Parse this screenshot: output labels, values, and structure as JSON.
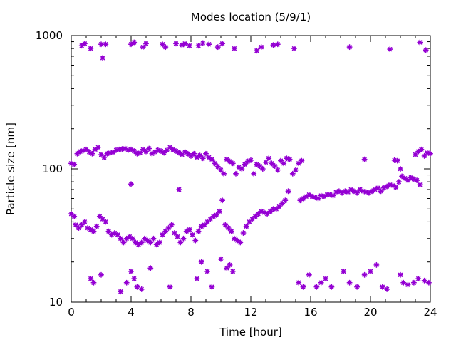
{
  "chart_data": {
    "type": "scatter",
    "title": "Modes location (5/9/1)",
    "xlabel": "Time [hour]",
    "ylabel": "Particle size [nm]",
    "xlim": [
      0,
      24
    ],
    "ylim": [
      10,
      1000
    ],
    "yscale": "log",
    "xticks": [
      0,
      4,
      8,
      12,
      16,
      20,
      24
    ],
    "xtick_labels": [
      "0",
      "4",
      "8",
      "12",
      "16",
      "20",
      "24"
    ],
    "yticks": [
      10,
      100,
      1000
    ],
    "ytick_labels": [
      "10",
      "100",
      "1000"
    ],
    "grid": false,
    "legend": "none",
    "marker": "asterisk",
    "color": "#9400d3",
    "series": [
      {
        "points": [
          [
            0.7,
            840
          ],
          [
            0.9,
            870
          ],
          [
            1.3,
            800
          ],
          [
            2.0,
            860
          ],
          [
            2.1,
            680
          ],
          [
            2.3,
            860
          ],
          [
            4.0,
            860
          ],
          [
            4.2,
            890
          ],
          [
            4.8,
            820
          ],
          [
            5.0,
            870
          ],
          [
            6.1,
            860
          ],
          [
            6.3,
            820
          ],
          [
            7.0,
            870
          ],
          [
            7.4,
            850
          ],
          [
            7.6,
            870
          ],
          [
            7.9,
            840
          ],
          [
            8.5,
            840
          ],
          [
            8.8,
            880
          ],
          [
            9.2,
            860
          ],
          [
            9.8,
            820
          ],
          [
            10.1,
            870
          ],
          [
            10.9,
            800
          ],
          [
            12.4,
            770
          ],
          [
            12.7,
            820
          ],
          [
            13.5,
            850
          ],
          [
            13.8,
            860
          ],
          [
            14.9,
            800
          ],
          [
            18.6,
            820
          ],
          [
            21.3,
            790
          ],
          [
            23.3,
            890
          ],
          [
            23.7,
            780
          ]
        ]
      },
      {
        "points": [
          [
            0.0,
            110
          ],
          [
            0.2,
            108
          ],
          [
            0.4,
            130
          ],
          [
            0.6,
            135
          ],
          [
            0.8,
            137
          ],
          [
            1.0,
            140
          ],
          [
            1.2,
            134
          ],
          [
            1.4,
            130
          ],
          [
            1.6,
            140
          ],
          [
            1.8,
            145
          ],
          [
            2.0,
            128
          ],
          [
            2.2,
            122
          ],
          [
            2.4,
            130
          ],
          [
            2.6,
            132
          ],
          [
            2.8,
            133
          ],
          [
            3.0,
            138
          ],
          [
            3.2,
            140
          ],
          [
            3.4,
            141
          ],
          [
            3.6,
            142
          ],
          [
            3.8,
            138
          ],
          [
            4.0,
            140
          ],
          [
            4.2,
            136
          ],
          [
            4.4,
            130
          ],
          [
            4.6,
            132
          ],
          [
            4.8,
            140
          ],
          [
            5.0,
            135
          ],
          [
            5.2,
            142
          ],
          [
            5.4,
            130
          ],
          [
            5.6,
            134
          ],
          [
            5.8,
            138
          ],
          [
            6.0,
            136
          ],
          [
            6.2,
            132
          ],
          [
            6.4,
            138
          ],
          [
            6.6,
            145
          ],
          [
            6.8,
            140
          ],
          [
            7.0,
            136
          ],
          [
            7.2,
            132
          ],
          [
            7.4,
            128
          ],
          [
            7.6,
            134
          ],
          [
            7.8,
            130
          ],
          [
            8.0,
            125
          ],
          [
            8.2,
            130
          ],
          [
            8.4,
            122
          ],
          [
            8.6,
            126
          ],
          [
            8.8,
            120
          ],
          [
            9.0,
            130
          ],
          [
            9.2,
            122
          ],
          [
            9.4,
            118
          ],
          [
            9.6,
            110
          ],
          [
            9.8,
            104
          ],
          [
            10.0,
            98
          ],
          [
            10.2,
            92
          ],
          [
            10.4,
            118
          ],
          [
            10.6,
            114
          ],
          [
            10.8,
            110
          ],
          [
            11.0,
            92
          ],
          [
            11.2,
            103
          ],
          [
            11.4,
            100
          ],
          [
            11.6,
            108
          ],
          [
            11.8,
            114
          ],
          [
            12.0,
            116
          ],
          [
            12.2,
            92
          ],
          [
            12.4,
            108
          ],
          [
            12.6,
            105
          ],
          [
            12.8,
            100
          ],
          [
            13.0,
            112
          ],
          [
            13.2,
            120
          ],
          [
            13.4,
            110
          ],
          [
            13.6,
            105
          ],
          [
            13.8,
            98
          ],
          [
            14.0,
            115
          ],
          [
            14.2,
            110
          ],
          [
            14.4,
            120
          ],
          [
            14.6,
            118
          ],
          [
            14.8,
            92
          ],
          [
            15.0,
            98
          ],
          [
            15.2,
            110
          ],
          [
            15.4,
            115
          ],
          [
            19.6,
            118
          ],
          [
            21.6,
            116
          ],
          [
            21.8,
            115
          ],
          [
            22.0,
            100
          ],
          [
            23.0,
            128
          ],
          [
            23.2,
            135
          ],
          [
            23.4,
            140
          ],
          [
            23.6,
            125
          ],
          [
            23.8,
            132
          ],
          [
            24.0,
            130
          ],
          [
            4.0,
            77
          ]
        ]
      },
      {
        "points": [
          [
            0.0,
            46
          ],
          [
            0.2,
            44
          ],
          [
            0.3,
            38
          ],
          [
            0.5,
            36
          ],
          [
            0.7,
            38
          ],
          [
            0.9,
            40
          ],
          [
            1.1,
            36
          ],
          [
            1.3,
            35
          ],
          [
            1.5,
            34
          ],
          [
            1.7,
            37
          ],
          [
            1.9,
            44
          ],
          [
            2.1,
            42
          ],
          [
            2.3,
            40
          ],
          [
            2.5,
            34
          ],
          [
            2.7,
            32
          ],
          [
            2.9,
            33
          ],
          [
            3.1,
            32
          ],
          [
            3.3,
            30
          ],
          [
            3.5,
            28
          ],
          [
            3.7,
            30
          ],
          [
            3.9,
            31
          ],
          [
            4.1,
            30
          ],
          [
            4.3,
            28
          ],
          [
            4.5,
            27
          ],
          [
            4.7,
            28
          ],
          [
            4.9,
            30
          ],
          [
            5.1,
            29
          ],
          [
            5.3,
            28
          ],
          [
            5.5,
            30
          ],
          [
            5.7,
            27
          ],
          [
            5.9,
            28
          ],
          [
            6.1,
            32
          ],
          [
            6.3,
            34
          ],
          [
            6.5,
            36
          ],
          [
            6.7,
            38
          ],
          [
            6.9,
            33
          ],
          [
            7.1,
            31
          ],
          [
            7.3,
            28
          ],
          [
            7.5,
            30
          ],
          [
            7.7,
            34
          ],
          [
            7.9,
            35
          ],
          [
            8.1,
            32
          ],
          [
            8.3,
            29
          ],
          [
            8.5,
            34
          ],
          [
            8.7,
            37
          ],
          [
            8.9,
            38
          ],
          [
            9.1,
            40
          ],
          [
            9.3,
            42
          ],
          [
            9.5,
            44
          ],
          [
            9.7,
            45
          ],
          [
            9.9,
            48
          ],
          [
            10.1,
            58
          ],
          [
            10.3,
            38
          ],
          [
            10.5,
            36
          ],
          [
            10.7,
            34
          ],
          [
            10.9,
            30
          ],
          [
            11.1,
            29
          ],
          [
            11.3,
            28
          ],
          [
            11.5,
            33
          ],
          [
            11.7,
            37
          ],
          [
            11.9,
            40
          ],
          [
            12.1,
            42
          ],
          [
            12.3,
            44
          ],
          [
            12.5,
            46
          ],
          [
            12.7,
            48
          ],
          [
            12.9,
            47
          ],
          [
            13.1,
            46
          ],
          [
            13.3,
            48
          ],
          [
            13.5,
            50
          ],
          [
            13.7,
            50
          ],
          [
            13.9,
            52
          ],
          [
            14.1,
            55
          ],
          [
            14.3,
            58
          ],
          [
            14.5,
            68
          ],
          [
            15.3,
            58
          ],
          [
            15.5,
            60
          ],
          [
            15.7,
            62
          ],
          [
            15.9,
            64
          ],
          [
            16.1,
            62
          ],
          [
            16.3,
            61
          ],
          [
            16.5,
            60
          ],
          [
            16.7,
            63
          ],
          [
            16.9,
            62
          ],
          [
            17.1,
            64
          ],
          [
            17.3,
            64
          ],
          [
            17.5,
            63
          ],
          [
            17.7,
            67
          ],
          [
            17.9,
            68
          ],
          [
            18.1,
            66
          ],
          [
            18.3,
            68
          ],
          [
            18.5,
            67
          ],
          [
            18.7,
            70
          ],
          [
            18.9,
            68
          ],
          [
            19.1,
            66
          ],
          [
            19.3,
            70
          ],
          [
            19.5,
            68
          ],
          [
            19.7,
            67
          ],
          [
            19.9,
            66
          ],
          [
            20.1,
            68
          ],
          [
            20.3,
            70
          ],
          [
            20.5,
            72
          ],
          [
            20.7,
            68
          ],
          [
            20.9,
            72
          ],
          [
            21.1,
            74
          ],
          [
            21.3,
            76
          ],
          [
            21.5,
            75
          ],
          [
            21.7,
            73
          ],
          [
            21.9,
            80
          ],
          [
            22.1,
            88
          ],
          [
            22.3,
            85
          ],
          [
            22.5,
            82
          ],
          [
            22.7,
            86
          ],
          [
            22.9,
            84
          ],
          [
            23.1,
            82
          ],
          [
            23.3,
            76
          ],
          [
            7.2,
            70
          ]
        ]
      },
      {
        "points": [
          [
            1.3,
            15
          ],
          [
            1.5,
            14
          ],
          [
            2.0,
            16
          ],
          [
            3.3,
            12
          ],
          [
            3.7,
            14
          ],
          [
            4.0,
            17
          ],
          [
            4.2,
            15
          ],
          [
            4.4,
            13
          ],
          [
            4.7,
            12.5
          ],
          [
            5.3,
            18
          ],
          [
            6.6,
            13
          ],
          [
            8.4,
            15
          ],
          [
            8.7,
            20
          ],
          [
            9.1,
            17
          ],
          [
            9.4,
            13
          ],
          [
            10.0,
            21
          ],
          [
            10.4,
            18
          ],
          [
            10.6,
            19
          ],
          [
            10.8,
            17
          ],
          [
            15.2,
            14
          ],
          [
            15.5,
            13
          ],
          [
            15.9,
            16
          ],
          [
            16.4,
            13
          ],
          [
            16.7,
            14
          ],
          [
            17.0,
            15
          ],
          [
            17.4,
            13
          ],
          [
            18.2,
            17
          ],
          [
            18.6,
            14
          ],
          [
            19.1,
            13
          ],
          [
            19.6,
            16
          ],
          [
            20.0,
            17
          ],
          [
            20.4,
            19
          ],
          [
            20.8,
            13
          ],
          [
            21.1,
            12.5
          ],
          [
            22.0,
            16
          ],
          [
            22.2,
            14
          ],
          [
            22.5,
            13.5
          ],
          [
            22.9,
            14
          ],
          [
            23.2,
            15
          ],
          [
            23.6,
            14.5
          ],
          [
            23.9,
            14
          ]
        ]
      }
    ]
  }
}
